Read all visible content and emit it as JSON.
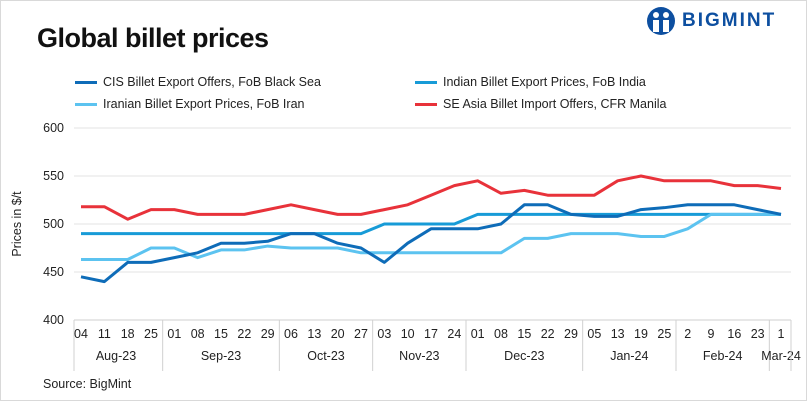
{
  "header": {
    "title": "Global billet prices",
    "logo_text": "BIGMINT"
  },
  "source": "Source: BigMint",
  "chart_data": {
    "type": "line",
    "title": "Global billet prices",
    "ylabel": "Prices in $/t",
    "ylim": [
      400,
      600
    ],
    "yticks": [
      400,
      450,
      500,
      550,
      600
    ],
    "grid": true,
    "legend_position": "top",
    "x_tick_labels": [
      "04",
      "11",
      "18",
      "25",
      "01",
      "08",
      "15",
      "22",
      "29",
      "06",
      "13",
      "20",
      "27",
      "03",
      "10",
      "17",
      "24",
      "01",
      "08",
      "15",
      "22",
      "29",
      "05",
      "13",
      "19",
      "25",
      "2",
      "9",
      "16",
      "23",
      "1"
    ],
    "month_groups": [
      {
        "label": "Aug-23",
        "count": 4
      },
      {
        "label": "Sep-23",
        "count": 5
      },
      {
        "label": "Oct-23",
        "count": 4
      },
      {
        "label": "Nov-23",
        "count": 4
      },
      {
        "label": "Dec-23",
        "count": 5
      },
      {
        "label": "Jan-24",
        "count": 4
      },
      {
        "label": "Feb-24",
        "count": 4
      },
      {
        "label": "Mar-24",
        "count": 1
      }
    ],
    "series": [
      {
        "name": "CIS Billet Export Offers, FoB Black Sea",
        "color": "#0e6cb8",
        "values": [
          445,
          440,
          460,
          460,
          465,
          470,
          480,
          480,
          482,
          490,
          490,
          480,
          475,
          460,
          480,
          495,
          495,
          495,
          500,
          520,
          520,
          510,
          508,
          508,
          515,
          517,
          520,
          520,
          520,
          515,
          510
        ]
      },
      {
        "name": "Indian Billet Export Prices, FoB India",
        "color": "#179bd7",
        "values": [
          490,
          490,
          490,
          490,
          490,
          490,
          490,
          490,
          490,
          490,
          490,
          490,
          490,
          500,
          500,
          500,
          500,
          510,
          510,
          510,
          510,
          510,
          510,
          510,
          510,
          510,
          510,
          510,
          510,
          510,
          510
        ]
      },
      {
        "name": "Iranian Billet Export Prices, FoB Iran",
        "color": "#5cc3f0",
        "values": [
          463,
          463,
          463,
          475,
          475,
          465,
          473,
          473,
          477,
          475,
          475,
          475,
          470,
          470,
          470,
          470,
          470,
          470,
          470,
          485,
          485,
          490,
          490,
          490,
          487,
          487,
          495,
          510,
          510,
          510,
          510
        ]
      },
      {
        "name": "SE Asia Billet Import Offers, CFR Manila",
        "color": "#e8323a",
        "values": [
          518,
          518,
          505,
          515,
          515,
          510,
          510,
          510,
          515,
          520,
          515,
          510,
          510,
          515,
          520,
          530,
          540,
          545,
          532,
          535,
          530,
          530,
          530,
          545,
          550,
          545,
          545,
          545,
          540,
          540,
          537
        ]
      }
    ]
  }
}
